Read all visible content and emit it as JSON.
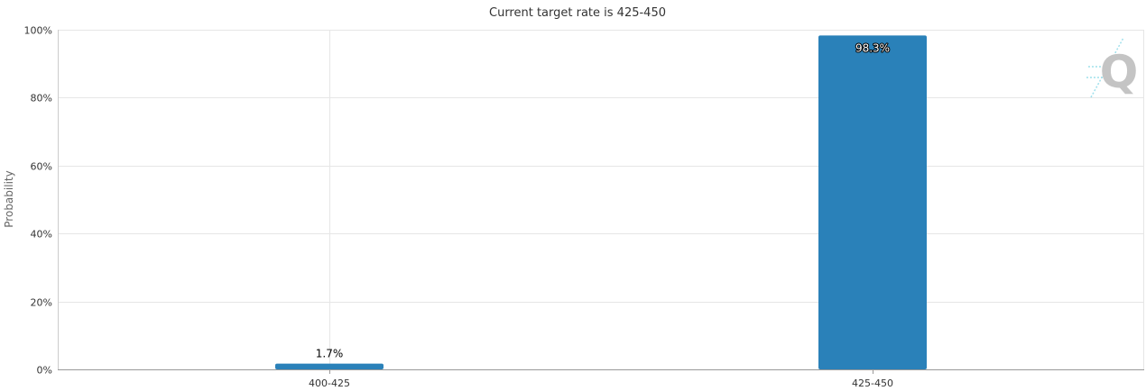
{
  "chart_data": {
    "type": "bar",
    "title": "Current target rate is 425-450",
    "xlabel": "",
    "ylabel": "Probability",
    "categories": [
      "400-425",
      "425-450"
    ],
    "series": [
      {
        "values": [
          1.7,
          98.3
        ],
        "labels": [
          "1.7%",
          "98.3%"
        ],
        "color": "#2a81b9"
      }
    ],
    "ylim": [
      0,
      100
    ],
    "yticks": [
      "0%",
      "20%",
      "40%",
      "60%",
      "80%",
      "100%"
    ],
    "grid": true,
    "legend": "none"
  },
  "watermark": {
    "letter": "Q",
    "icon": "quikstrike-logo-icon"
  }
}
